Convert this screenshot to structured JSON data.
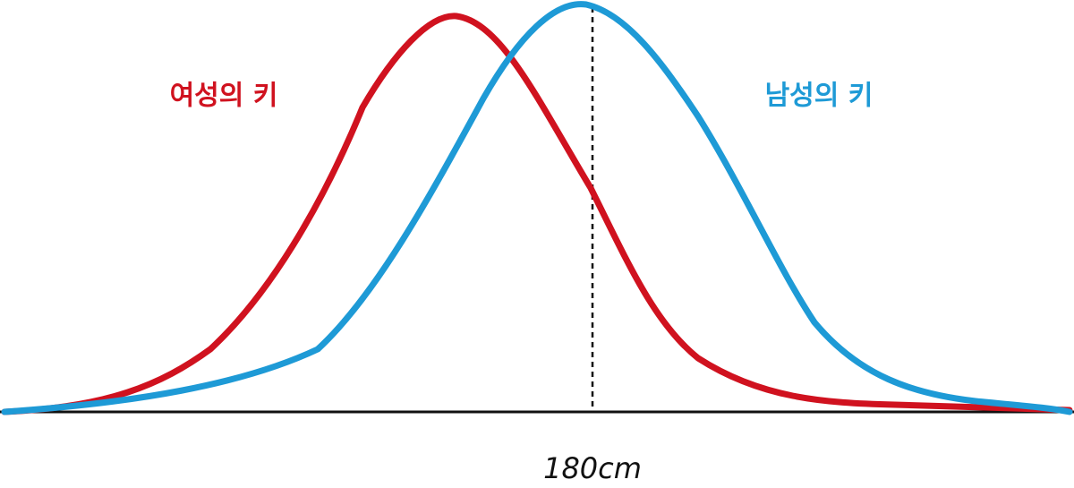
{
  "labels": {
    "female": "여성의 키",
    "male": "남성의 키",
    "marker": "180cm"
  }
}
